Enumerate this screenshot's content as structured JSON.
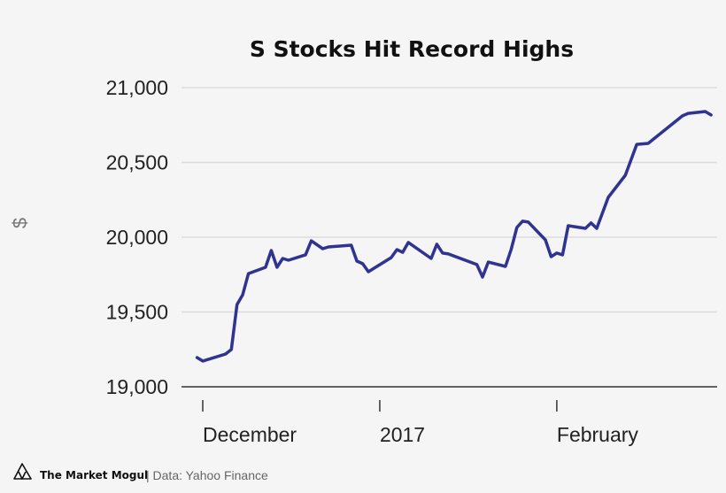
{
  "chart_data": {
    "type": "line",
    "title": "S Stocks Hit Record Highs",
    "xlabel": "",
    "ylabel": "$",
    "ylim": [
      19000,
      21000
    ],
    "yticks": [
      19000,
      19500,
      20000,
      20500,
      21000
    ],
    "ytick_labels": [
      "19,000",
      "19,500",
      "20,000",
      "20,500",
      "21,000"
    ],
    "xticks": [
      {
        "date": "2016-12-01",
        "label": "December"
      },
      {
        "date": "2017-01-01",
        "label": "2017"
      },
      {
        "date": "2017-02-01",
        "label": "February"
      }
    ],
    "grid": "horizontal",
    "line_color": "#30338f",
    "series": [
      {
        "x": [
          "2016-11-30",
          "2016-12-01",
          "2016-12-05",
          "2016-12-06",
          "2016-12-07",
          "2016-12-08",
          "2016-12-09",
          "2016-12-12",
          "2016-12-13",
          "2016-12-14",
          "2016-12-15",
          "2016-12-16",
          "2016-12-19",
          "2016-12-20",
          "2016-12-22",
          "2016-12-23",
          "2016-12-27",
          "2016-12-28",
          "2016-12-29",
          "2016-12-30",
          "2017-01-03",
          "2017-01-04",
          "2017-01-05",
          "2017-01-06",
          "2017-01-10",
          "2017-01-11",
          "2017-01-12",
          "2017-01-13",
          "2017-01-18",
          "2017-01-19",
          "2017-01-20",
          "2017-01-23",
          "2017-01-24",
          "2017-01-25",
          "2017-01-26",
          "2017-01-27",
          "2017-01-30",
          "2017-01-31",
          "2017-02-01",
          "2017-02-02",
          "2017-02-03",
          "2017-02-06",
          "2017-02-07",
          "2017-02-08",
          "2017-02-10",
          "2017-02-13",
          "2017-02-15",
          "2017-02-17",
          "2017-02-23",
          "2017-02-24",
          "2017-02-27",
          "2017-02-28"
        ],
        "values": [
          19195,
          19172,
          19219,
          19249,
          19550,
          19615,
          19757,
          19799,
          19911,
          19799,
          19858,
          19846,
          19882,
          19976,
          19923,
          19935,
          19947,
          19840,
          19823,
          19769,
          19864,
          19917,
          19899,
          19965,
          19858,
          19953,
          19894,
          19888,
          19817,
          19734,
          19834,
          19805,
          19917,
          20065,
          20107,
          20101,
          19982,
          19870,
          19894,
          19882,
          20077,
          20059,
          20095,
          20059,
          20266,
          20414,
          20621,
          20627,
          20811,
          20828,
          20840,
          20817
        ]
      }
    ]
  },
  "footer": {
    "brand": "The Market Mogul",
    "source": "| Data: Yahoo Finance"
  }
}
